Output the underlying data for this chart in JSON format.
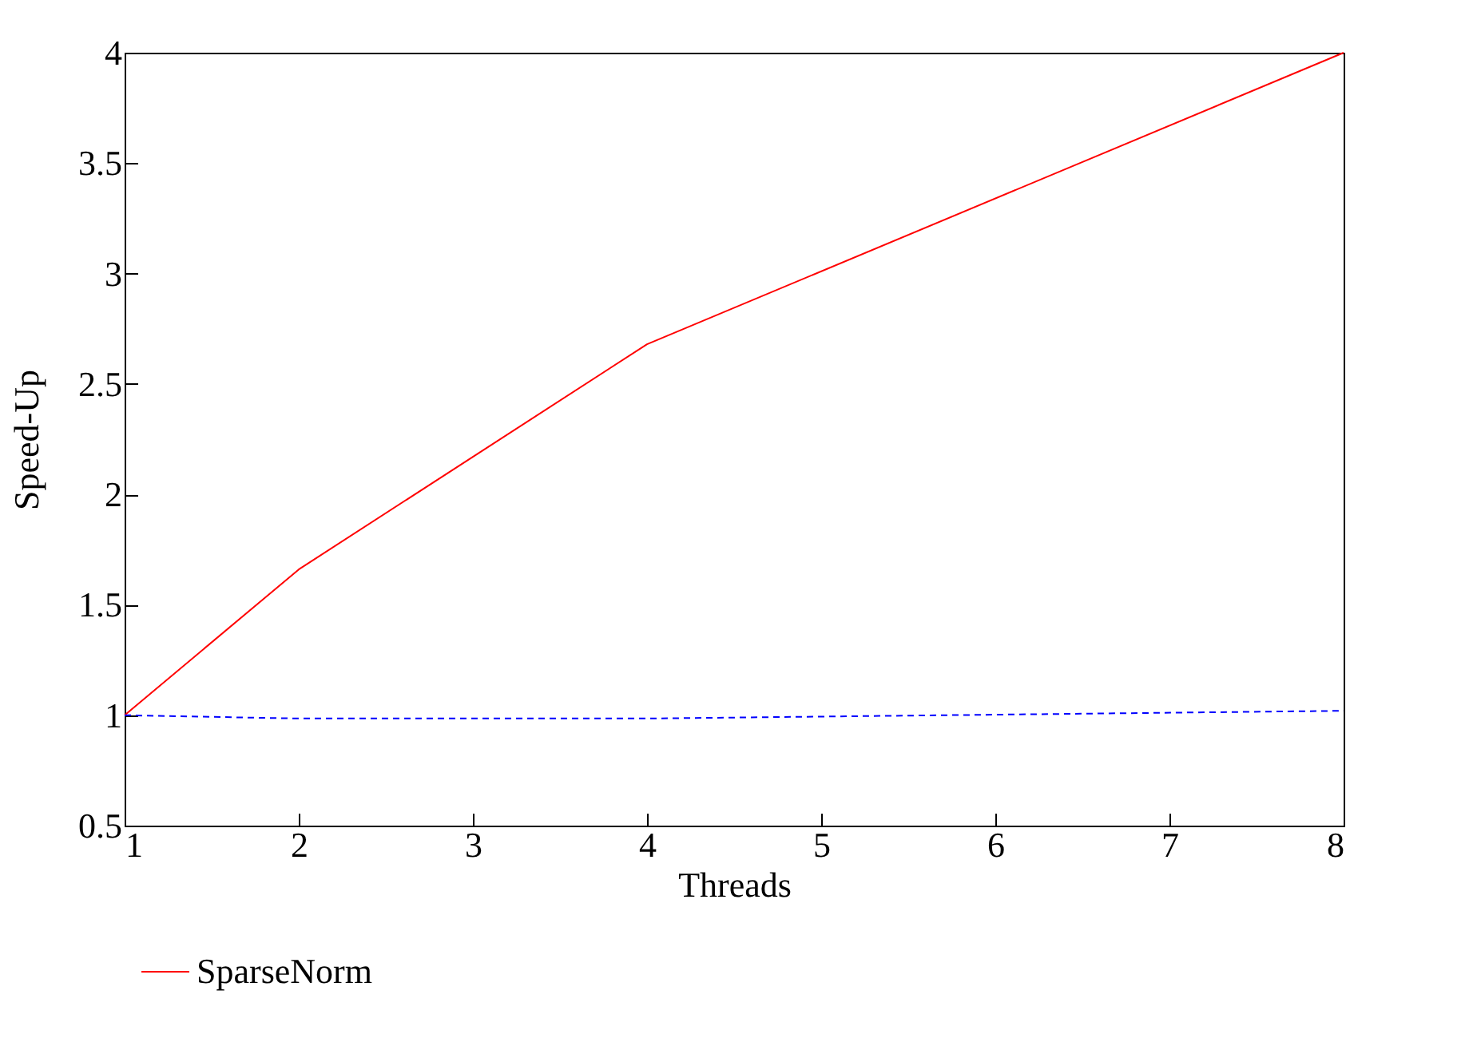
{
  "chart_data": {
    "type": "line",
    "xlabel": "Threads",
    "ylabel": "Speed-Up",
    "x": [
      1,
      2,
      4,
      8
    ],
    "series": [
      {
        "name": "SparseNorm",
        "color": "#ff0000",
        "values": [
          1,
          1.66,
          2.68,
          4.0
        ],
        "line_style": "solid"
      },
      {
        "color": "#0000ff",
        "values": [
          1,
          0.985,
          0.985,
          1.02
        ],
        "line_style": "dashed"
      }
    ],
    "xlim": [
      1,
      8
    ],
    "xticks": [
      1,
      2,
      3,
      4,
      5,
      6,
      7,
      8
    ],
    "ylim": [
      0.5,
      4
    ],
    "yticks": [
      0.5,
      1,
      1.5,
      2,
      2.5,
      3,
      3.5,
      4
    ],
    "grid": false,
    "legend": "bottom",
    "marker": "none"
  }
}
